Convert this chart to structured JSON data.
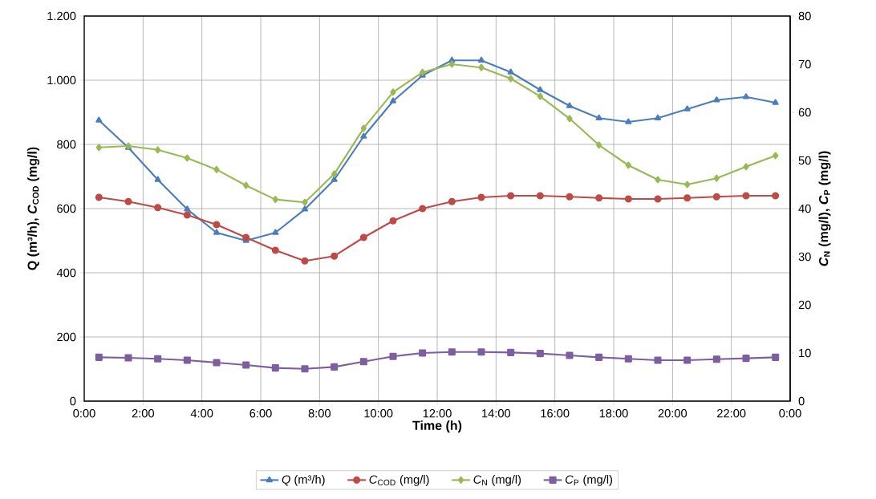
{
  "chart_data": {
    "type": "line",
    "xlabel": "Time (h)",
    "ylabel": "Q (m³/h), *C*$_{COD}$ (mg/l)",
    "y2label": "*C*$_{N}$ (mg/l), *C*$_{P}$ (mg/l)",
    "x": [
      0.5,
      1.5,
      2.5,
      3.5,
      4.5,
      5.5,
      6.5,
      7.5,
      8.5,
      9.5,
      10.5,
      11.5,
      12.5,
      13.5,
      14.5,
      15.5,
      16.5,
      17.5,
      18.5,
      19.5,
      20.5,
      21.5,
      22.5,
      23.5
    ],
    "xlim": [
      0,
      24
    ],
    "xticks": [
      {
        "value": 0,
        "label": "0:00"
      },
      {
        "value": 2,
        "label": "2:00"
      },
      {
        "value": 4,
        "label": "4:00"
      },
      {
        "value": 6,
        "label": "6:00"
      },
      {
        "value": 8,
        "label": "8:00"
      },
      {
        "value": 10,
        "label": "10:00"
      },
      {
        "value": 12,
        "label": "12:00"
      },
      {
        "value": 14,
        "label": "14:00"
      },
      {
        "value": 16,
        "label": "16:00"
      },
      {
        "value": 18,
        "label": "18:00"
      },
      {
        "value": 20,
        "label": "20:00"
      },
      {
        "value": 22,
        "label": "22:00"
      },
      {
        "value": 24,
        "label": "0:00"
      }
    ],
    "ylim": [
      0,
      1200
    ],
    "yticks": [
      0,
      200,
      400,
      600,
      800,
      {
        "value": 1000,
        "label": "1.000"
      },
      {
        "value": 1200,
        "label": "1.200"
      }
    ],
    "y2lim": [
      0,
      80
    ],
    "y2ticks": [
      0,
      10,
      20,
      30,
      40,
      50,
      60,
      70,
      80
    ],
    "grid": true,
    "legend": "bottom",
    "line_style": "solid",
    "series": [
      {
        "name": "*Q* (m³/h)",
        "color": "#4a7ebb",
        "marker": "triangle",
        "values": [
          875,
          790,
          690,
          598,
          525,
          500,
          525,
          598,
          690,
          825,
          935,
          1015,
          1062,
          1062,
          1025,
          970,
          920,
          882,
          870,
          882,
          910,
          938,
          948,
          930
        ]
      },
      {
        "name": "*C*$_{COD}$ (mg/l)",
        "color": "#be4b48",
        "marker": "circle",
        "values": [
          635,
          622,
          603,
          580,
          550,
          510,
          470,
          437,
          452,
          510,
          562,
          600,
          622,
          635,
          640,
          640,
          637,
          633,
          630,
          630,
          633,
          637,
          640,
          640
        ]
      },
      {
        "name": "*C*$_{N}$ (mg/l)",
        "color": "#98b954",
        "marker": "diamond",
        "axis": "y2",
        "values": [
          52.7,
          53,
          52.2,
          50.5,
          48.1,
          44.8,
          41.9,
          41.3,
          47.2,
          56.7,
          64.2,
          68.3,
          70,
          69.3,
          67,
          63.3,
          58.7,
          53.2,
          49,
          46,
          45,
          46.3,
          48.7,
          51
        ]
      },
      {
        "name": "*C*$_{P}$ (mg/l)",
        "color": "#7d5fa0",
        "marker": "square",
        "axis": "y2",
        "values": [
          9.1,
          9,
          8.8,
          8.5,
          8,
          7.5,
          6.9,
          6.7,
          7.1,
          8.2,
          9.3,
          10,
          10.2,
          10.2,
          10.1,
          9.9,
          9.5,
          9.1,
          8.8,
          8.5,
          8.5,
          8.7,
          8.9,
          9.1
        ]
      }
    ]
  }
}
